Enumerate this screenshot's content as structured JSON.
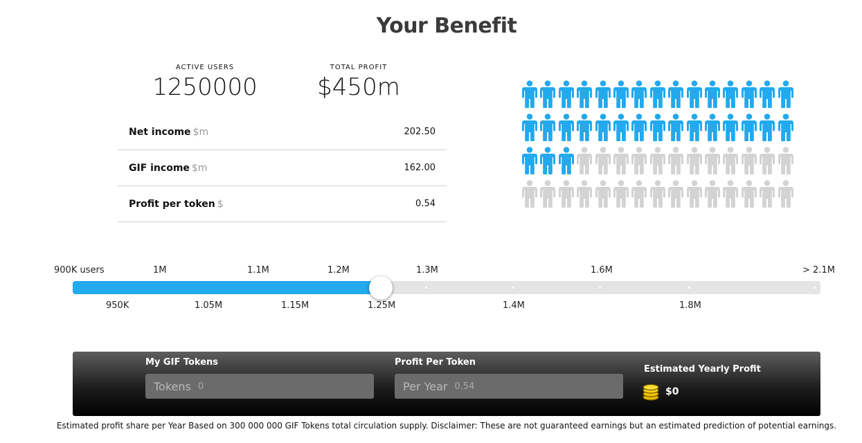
{
  "title": "Your Benefit",
  "stats": {
    "active_users_label": "ACTIVE USERS",
    "active_users_value": "1250000",
    "total_profit_label": "TOTAL PROFIT",
    "total_profit_value": "$450m"
  },
  "income_rows": [
    {
      "label": "Net income",
      "unit": "$m",
      "value": "202.50"
    },
    {
      "label": "GIF income",
      "unit": "$m",
      "value": "162.00"
    },
    {
      "label": "Profit per token",
      "unit": "$",
      "value": "0.54"
    }
  ],
  "people_graphic": {
    "total_icons": 60,
    "active_icons": 33,
    "active_color": "#22a9ee",
    "inactive_color": "#d3d3d3"
  },
  "slider": {
    "labels_top": [
      "900K users",
      "1M",
      "1.1M",
      "1.2M",
      "1.3M",
      "1.6M",
      "> 2.1M"
    ],
    "labels_bottom": [
      "950K",
      "1.05M",
      "1.15M",
      "1.25M",
      "1.4M",
      "1.8M"
    ],
    "selected_value": "1.25M",
    "fill_fraction": 0.412,
    "track_color": "#e4e4e4",
    "fill_color": "#22a9ee"
  },
  "calculator": {
    "tokens_title": "My GIF Tokens",
    "tokens_placeholder": "Tokens",
    "tokens_value": "0",
    "profit_token_title": "Profit Per Token",
    "profit_token_placeholder": "Per Year",
    "profit_token_value": "0.54",
    "estimated_title": "Estimated Yearly Profit",
    "estimated_value": "$0",
    "coin_icon": "coins-icon"
  },
  "disclaimer": "Estimated profit share per Year Based on 300 000 000 GIF Tokens total circulation supply. Disclaimer: These are not guaranteed earnings but an estimated prediction of potential earnings."
}
